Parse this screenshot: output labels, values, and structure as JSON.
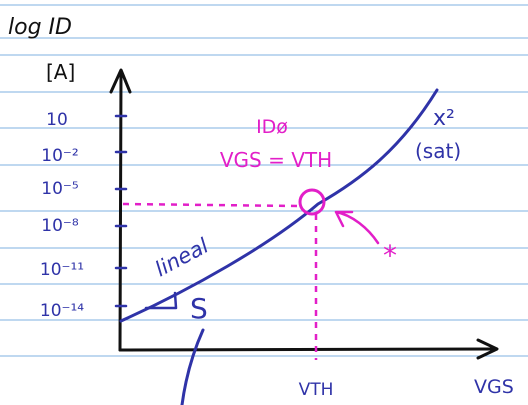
{
  "colors": {
    "ruling": "#7fb2e0",
    "ink": "#2f33a8",
    "pink": "#e21fc8",
    "ink_dark": "#111111"
  },
  "axes": {
    "y_label_line1": "log ID",
    "y_label_line2": "[A]",
    "x_label": "VGS",
    "x_marker": "VTH"
  },
  "y_ticks": [
    "10",
    "10⁻²",
    "10⁻⁵",
    "10⁻⁸",
    "10⁻¹¹",
    "10⁻¹⁴"
  ],
  "annotations": {
    "id0": "IDø",
    "condition": "VGS = VTH",
    "region_linear": "lineal",
    "region_sat_1": "x²",
    "region_sat_2": "(sat)",
    "slope": "S",
    "star": "*"
  }
}
